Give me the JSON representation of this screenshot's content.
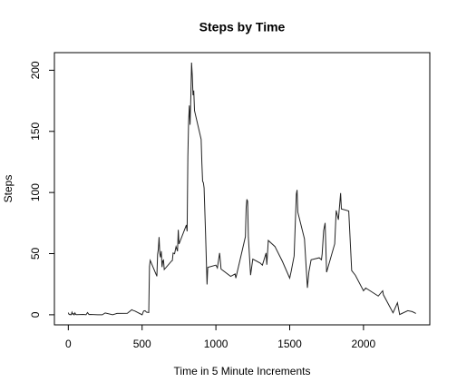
{
  "chart_data": {
    "type": "line",
    "title": "Steps by Time",
    "xlabel": "Time in 5 Minute Increments",
    "ylabel": "Steps",
    "color": "#222222",
    "x": [
      0,
      5,
      10,
      15,
      20,
      25,
      30,
      35,
      40,
      45,
      50,
      55,
      100,
      110,
      120,
      130,
      140,
      150,
      200,
      230,
      250,
      300,
      330,
      400,
      430,
      440,
      450,
      500,
      510,
      520,
      530,
      545,
      550,
      555,
      600,
      605,
      610,
      615,
      620,
      625,
      630,
      635,
      640,
      645,
      650,
      700,
      705,
      710,
      720,
      730,
      740,
      745,
      750,
      800,
      805,
      810,
      815,
      820,
      825,
      830,
      835,
      840,
      845,
      850,
      855,
      900,
      905,
      910,
      915,
      920,
      930,
      940,
      945,
      1000,
      1010,
      1025,
      1030,
      1035,
      1100,
      1130,
      1135,
      1200,
      1205,
      1210,
      1215,
      1220,
      1235,
      1250,
      1300,
      1315,
      1340,
      1345,
      1355,
      1400,
      1450,
      1500,
      1510,
      1530,
      1545,
      1550,
      1555,
      1600,
      1620,
      1630,
      1645,
      1700,
      1715,
      1720,
      1730,
      1740,
      1750,
      1805,
      1815,
      1830,
      1845,
      1850,
      1900,
      1920,
      1945,
      2000,
      2015,
      2100,
      2130,
      2135,
      2200,
      2230,
      2245,
      2300,
      2330,
      2355
    ],
    "values": [
      1.7,
      0.3,
      0.1,
      0.2,
      0.1,
      2.1,
      0.5,
      0.9,
      0,
      1.5,
      0.3,
      0.1,
      0.3,
      0.2,
      0,
      1.8,
      0.2,
      0.3,
      0,
      0,
      1.5,
      0,
      1.1,
      1.2,
      4.1,
      3.5,
      3.1,
      0,
      3,
      3.3,
      2.1,
      1.8,
      39.5,
      44.5,
      31.5,
      49.3,
      53.8,
      63.5,
      50,
      47,
      52,
      39,
      44,
      44.7,
      37,
      44,
      44.4,
      50.5,
      49.9,
      55.7,
      52,
      69.5,
      57.8,
      73.4,
      68.2,
      129.4,
      157.5,
      171.2,
      155.4,
      177.3,
      206.2,
      195.9,
      179.6,
      183.4,
      167,
      143.5,
      124,
      109.1,
      108.1,
      103.7,
      66.2,
      24.8,
      38.8,
      40.6,
      38.3,
      50.5,
      44.3,
      37.4,
      31.4,
      33.4,
      30,
      63.9,
      87.7,
      94.4,
      92.8,
      63.4,
      32.4,
      45.5,
      42.3,
      40.6,
      50.5,
      40.9,
      60.8,
      55.8,
      43.8,
      30,
      35.5,
      48.1,
      98.7,
      102.1,
      83.9,
      62.1,
      22,
      35,
      45,
      46.6,
      45,
      49.9,
      68.9,
      75.1,
      34.8,
      58,
      85.3,
      77.7,
      99.5,
      86.6,
      84.9,
      36.1,
      32.3,
      19.6,
      21.9,
      15.3,
      19.6,
      16.3,
      1.6,
      9.8,
      0.2,
      3.3,
      2.6,
      1.1
    ],
    "xlim": [
      -94.2,
      2449.2
    ],
    "ylim": [
      -8.25,
      214.4
    ],
    "xticks": [
      0,
      500,
      1000,
      1500,
      2000
    ],
    "yticks": [
      0,
      50,
      100,
      150,
      200
    ]
  }
}
